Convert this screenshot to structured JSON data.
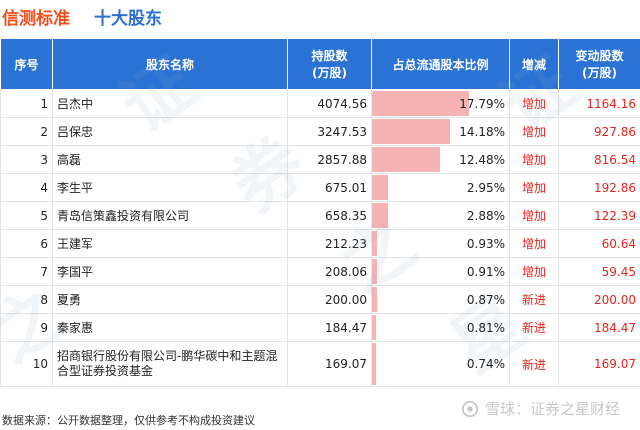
{
  "title": {
    "left": "信测标准",
    "right": "十大股东"
  },
  "columns": {
    "idx": "序号",
    "name": "股东名称",
    "shares_line1": "持股数",
    "shares_line2": "(万股)",
    "ratio": "占总流通股本比例",
    "change": "增减",
    "delta_line1": "变动股数",
    "delta_line2": "(万股)"
  },
  "rows": [
    {
      "idx": "1",
      "name": "吕杰中",
      "shares": "4074.56",
      "ratio": "17.79%",
      "ratio_value": 17.79,
      "change": "增加",
      "delta": "1164.16"
    },
    {
      "idx": "2",
      "name": "吕保忠",
      "shares": "3247.53",
      "ratio": "14.18%",
      "ratio_value": 14.18,
      "change": "增加",
      "delta": "927.86"
    },
    {
      "idx": "3",
      "name": "高磊",
      "shares": "2857.88",
      "ratio": "12.48%",
      "ratio_value": 12.48,
      "change": "增加",
      "delta": "816.54"
    },
    {
      "idx": "4",
      "name": "李生平",
      "shares": "675.01",
      "ratio": "2.95%",
      "ratio_value": 2.95,
      "change": "增加",
      "delta": "192.86"
    },
    {
      "idx": "5",
      "name": "青岛信策鑫投资有限公司",
      "shares": "658.35",
      "ratio": "2.88%",
      "ratio_value": 2.88,
      "change": "增加",
      "delta": "122.39"
    },
    {
      "idx": "6",
      "name": "王建军",
      "shares": "212.23",
      "ratio": "0.93%",
      "ratio_value": 0.93,
      "change": "增加",
      "delta": "60.64"
    },
    {
      "idx": "7",
      "name": "李国平",
      "shares": "208.06",
      "ratio": "0.91%",
      "ratio_value": 0.91,
      "change": "增加",
      "delta": "59.45"
    },
    {
      "idx": "8",
      "name": "夏勇",
      "shares": "200.00",
      "ratio": "0.87%",
      "ratio_value": 0.87,
      "change": "新进",
      "delta": "200.00"
    },
    {
      "idx": "9",
      "name": "秦家惠",
      "shares": "184.47",
      "ratio": "0.81%",
      "ratio_value": 0.81,
      "change": "新进",
      "delta": "184.47"
    },
    {
      "idx": "10",
      "name": "招商银行股份有限公司-鹏华碳中和主题混合型证券投资基金",
      "shares": "169.07",
      "ratio": "0.74%",
      "ratio_value": 0.74,
      "change": "新进",
      "delta": "169.07"
    }
  ],
  "ratio_bar_max": 25,
  "footer": {
    "source": "数据来源：公开数据整理，仅供参考不构成投资建议",
    "brand": "雪球：证券之星财经"
  },
  "watermark": [
    "证",
    "券",
    "之",
    "星"
  ],
  "colors": {
    "header_bg": "#2a72d4",
    "bar": "#f6b3b3",
    "accent_red": "#e0281e",
    "title_orange": "#f0501e",
    "title_blue": "#2a6fd0"
  }
}
